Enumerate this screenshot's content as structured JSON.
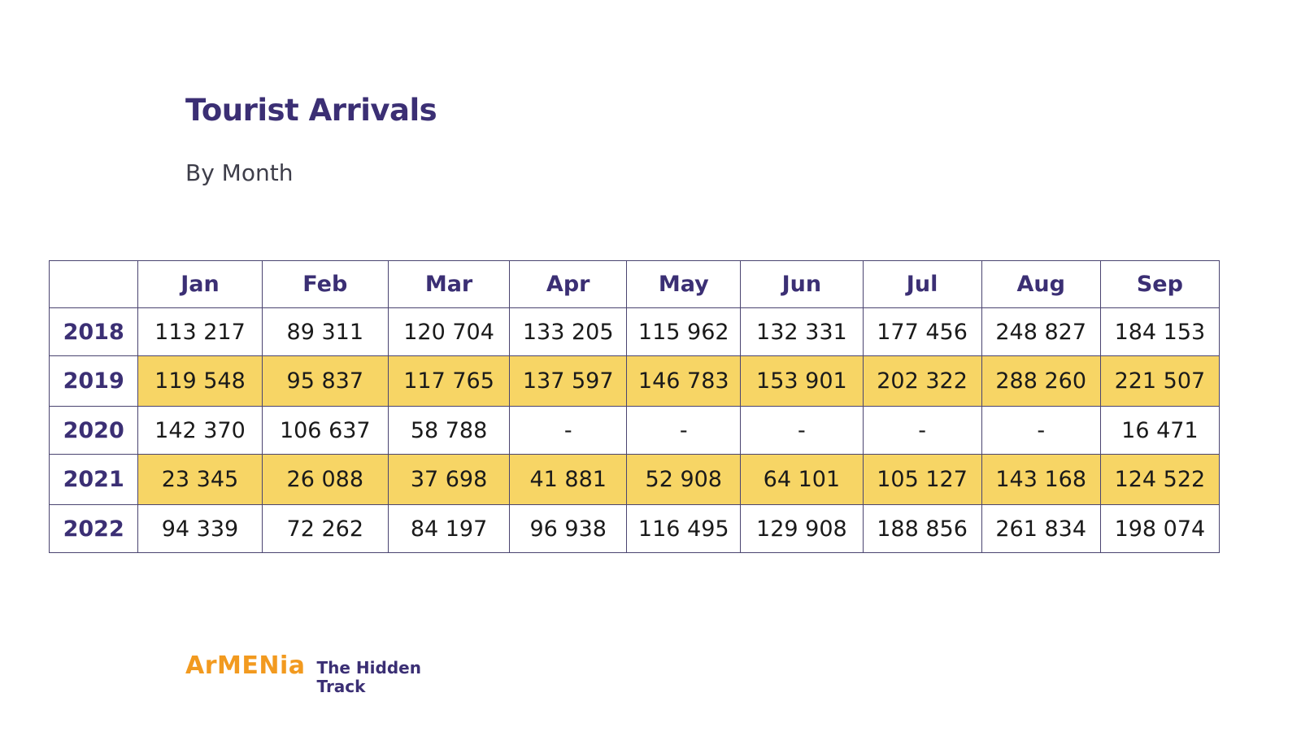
{
  "header": {
    "title": "Tourist Arrivals",
    "subtitle": "By Month"
  },
  "table": {
    "columns": [
      "",
      "Jan",
      "Feb",
      "Mar",
      "Apr",
      "May",
      "Jun",
      "Jul",
      "Aug",
      "Sep"
    ],
    "rows": [
      {
        "year": "2018",
        "values": [
          "113 217",
          "89 311",
          "120 704",
          "133 205",
          "115 962",
          "132 331",
          "177 456",
          "248 827",
          "184 153"
        ]
      },
      {
        "year": "2019",
        "values": [
          "119 548",
          "95 837",
          "117 765",
          "137 597",
          "146 783",
          "153 901",
          "202 322",
          "288 260",
          "221 507"
        ]
      },
      {
        "year": "2020",
        "values": [
          "142 370",
          "106 637",
          "58 788",
          "-",
          "-",
          "-",
          "-",
          "-",
          "16 471"
        ]
      },
      {
        "year": "2021",
        "values": [
          "23 345",
          "26 088",
          "37 698",
          "41 881",
          "52 908",
          "64 101",
          "105 127",
          "143 168",
          "124 522"
        ]
      },
      {
        "year": "2022",
        "values": [
          "94 339",
          "72 262",
          "84 197",
          "96 938",
          "116 495",
          "129 908",
          "188 856",
          "261 834",
          "198 074"
        ]
      }
    ],
    "highlight_color": "#f7d565",
    "header_color": "#3b2f74"
  },
  "logo": {
    "brand": "ArMENia",
    "tagline_line1": "The Hidden",
    "tagline_line2": "Track",
    "brand_color": "#f29a1f",
    "tagline_color": "#3b2f74"
  }
}
